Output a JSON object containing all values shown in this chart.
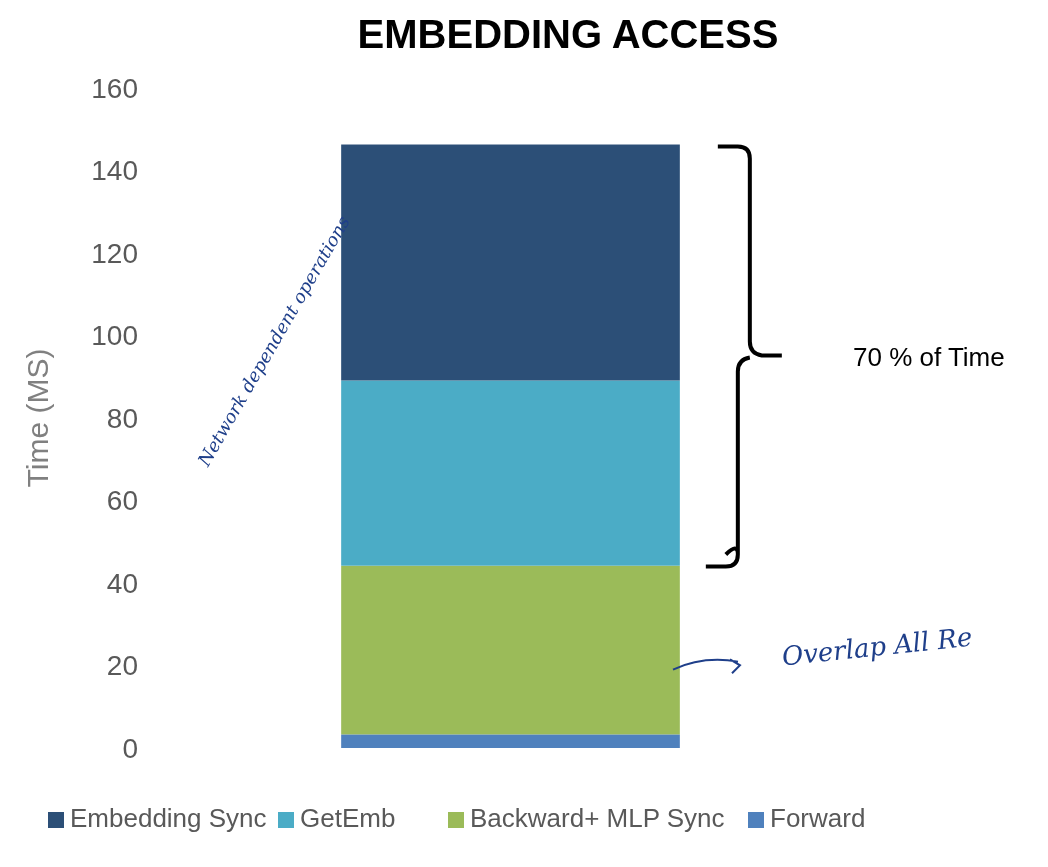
{
  "chart_data": {
    "type": "bar",
    "title": "EMBEDDING ACCESS",
    "ylabel": "Time (MS)",
    "categories": [
      null
    ],
    "stacked": true,
    "series": [
      {
        "name": "Forward",
        "color": "#4f81bd",
        "values": [
          3.3
        ]
      },
      {
        "name": "Backward+ MLP Sync",
        "color": "#9bbb59",
        "values": [
          40.9
        ]
      },
      {
        "name": "GetEmb",
        "color": "#4bacc6",
        "values": [
          44.9
        ]
      },
      {
        "name": "Embedding Sync",
        "color": "#2c4f77",
        "values": [
          57.2
        ]
      }
    ],
    "ylim": [
      0,
      160
    ],
    "yticks": [
      0,
      20,
      40,
      60,
      80,
      100,
      120,
      140,
      160
    ],
    "legend": "bottom",
    "grid": false,
    "annotations": [
      "70 % of Time",
      "Network dependent operations",
      "Overlap All Re"
    ]
  }
}
